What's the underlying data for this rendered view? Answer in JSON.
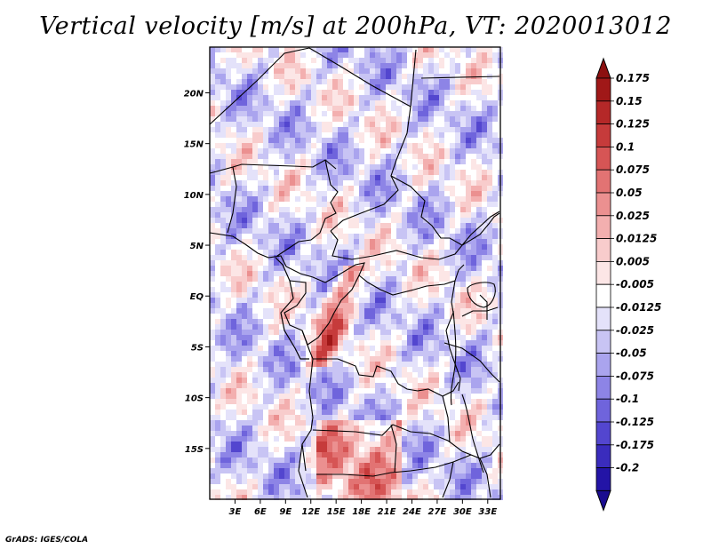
{
  "title": "Vertical velocity [m/s] at 200hPa, VT: 2020013012",
  "footer": "GrADS: IGES/COLA",
  "map": {
    "variable": "Vertical velocity",
    "units": "m/s",
    "level": "200hPa",
    "valid_time": "2020013012",
    "lon_range": [
      0,
      34.5
    ],
    "lat_range": [
      -20,
      24.5
    ],
    "lon_ticks": [
      {
        "label": "3E",
        "value": 3
      },
      {
        "label": "6E",
        "value": 6
      },
      {
        "label": "9E",
        "value": 9
      },
      {
        "label": "12E",
        "value": 12
      },
      {
        "label": "15E",
        "value": 15
      },
      {
        "label": "18E",
        "value": 18
      },
      {
        "label": "21E",
        "value": 21
      },
      {
        "label": "24E",
        "value": 24
      },
      {
        "label": "27E",
        "value": 27
      },
      {
        "label": "30E",
        "value": 30
      },
      {
        "label": "33E",
        "value": 33
      }
    ],
    "lat_ticks": [
      {
        "label": "20N",
        "value": 20
      },
      {
        "label": "15N",
        "value": 15
      },
      {
        "label": "10N",
        "value": 10
      },
      {
        "label": "5N",
        "value": 5
      },
      {
        "label": "EQ",
        "value": 0
      },
      {
        "label": "5S",
        "value": -5
      },
      {
        "label": "10S",
        "value": -10
      },
      {
        "label": "15S",
        "value": -15
      }
    ]
  },
  "colorbar": {
    "levels": [
      {
        "label": "0.175",
        "color": "#a01818"
      },
      {
        "label": "0.15",
        "color": "#b52828"
      },
      {
        "label": "0.125",
        "color": "#c63b3b"
      },
      {
        "label": "0.1",
        "color": "#d65555"
      },
      {
        "label": "0.075",
        "color": "#e27373"
      },
      {
        "label": "0.05",
        "color": "#eb9090"
      },
      {
        "label": "0.025",
        "color": "#f3afaf"
      },
      {
        "label": "0.0125",
        "color": "#f8cccc"
      },
      {
        "label": "0.005",
        "color": "#fce6e6"
      },
      {
        "label": "-0.005",
        "color": "#ffffff"
      },
      {
        "label": "-0.0125",
        "color": "#e4e2fa"
      },
      {
        "label": "-0.025",
        "color": "#c8c4f4"
      },
      {
        "label": "-0.05",
        "color": "#aaa4ee"
      },
      {
        "label": "-0.075",
        "color": "#8d84e6"
      },
      {
        "label": "-0.1",
        "color": "#6f64dc"
      },
      {
        "label": "-0.125",
        "color": "#5346cf"
      },
      {
        "label": "-0.175",
        "color": "#3a2cbd"
      },
      {
        "label": "-0.2",
        "color": "#2314a6"
      }
    ],
    "top_arrow_color": "#8c1010",
    "bottom_arrow_color": "#1a0c90"
  }
}
